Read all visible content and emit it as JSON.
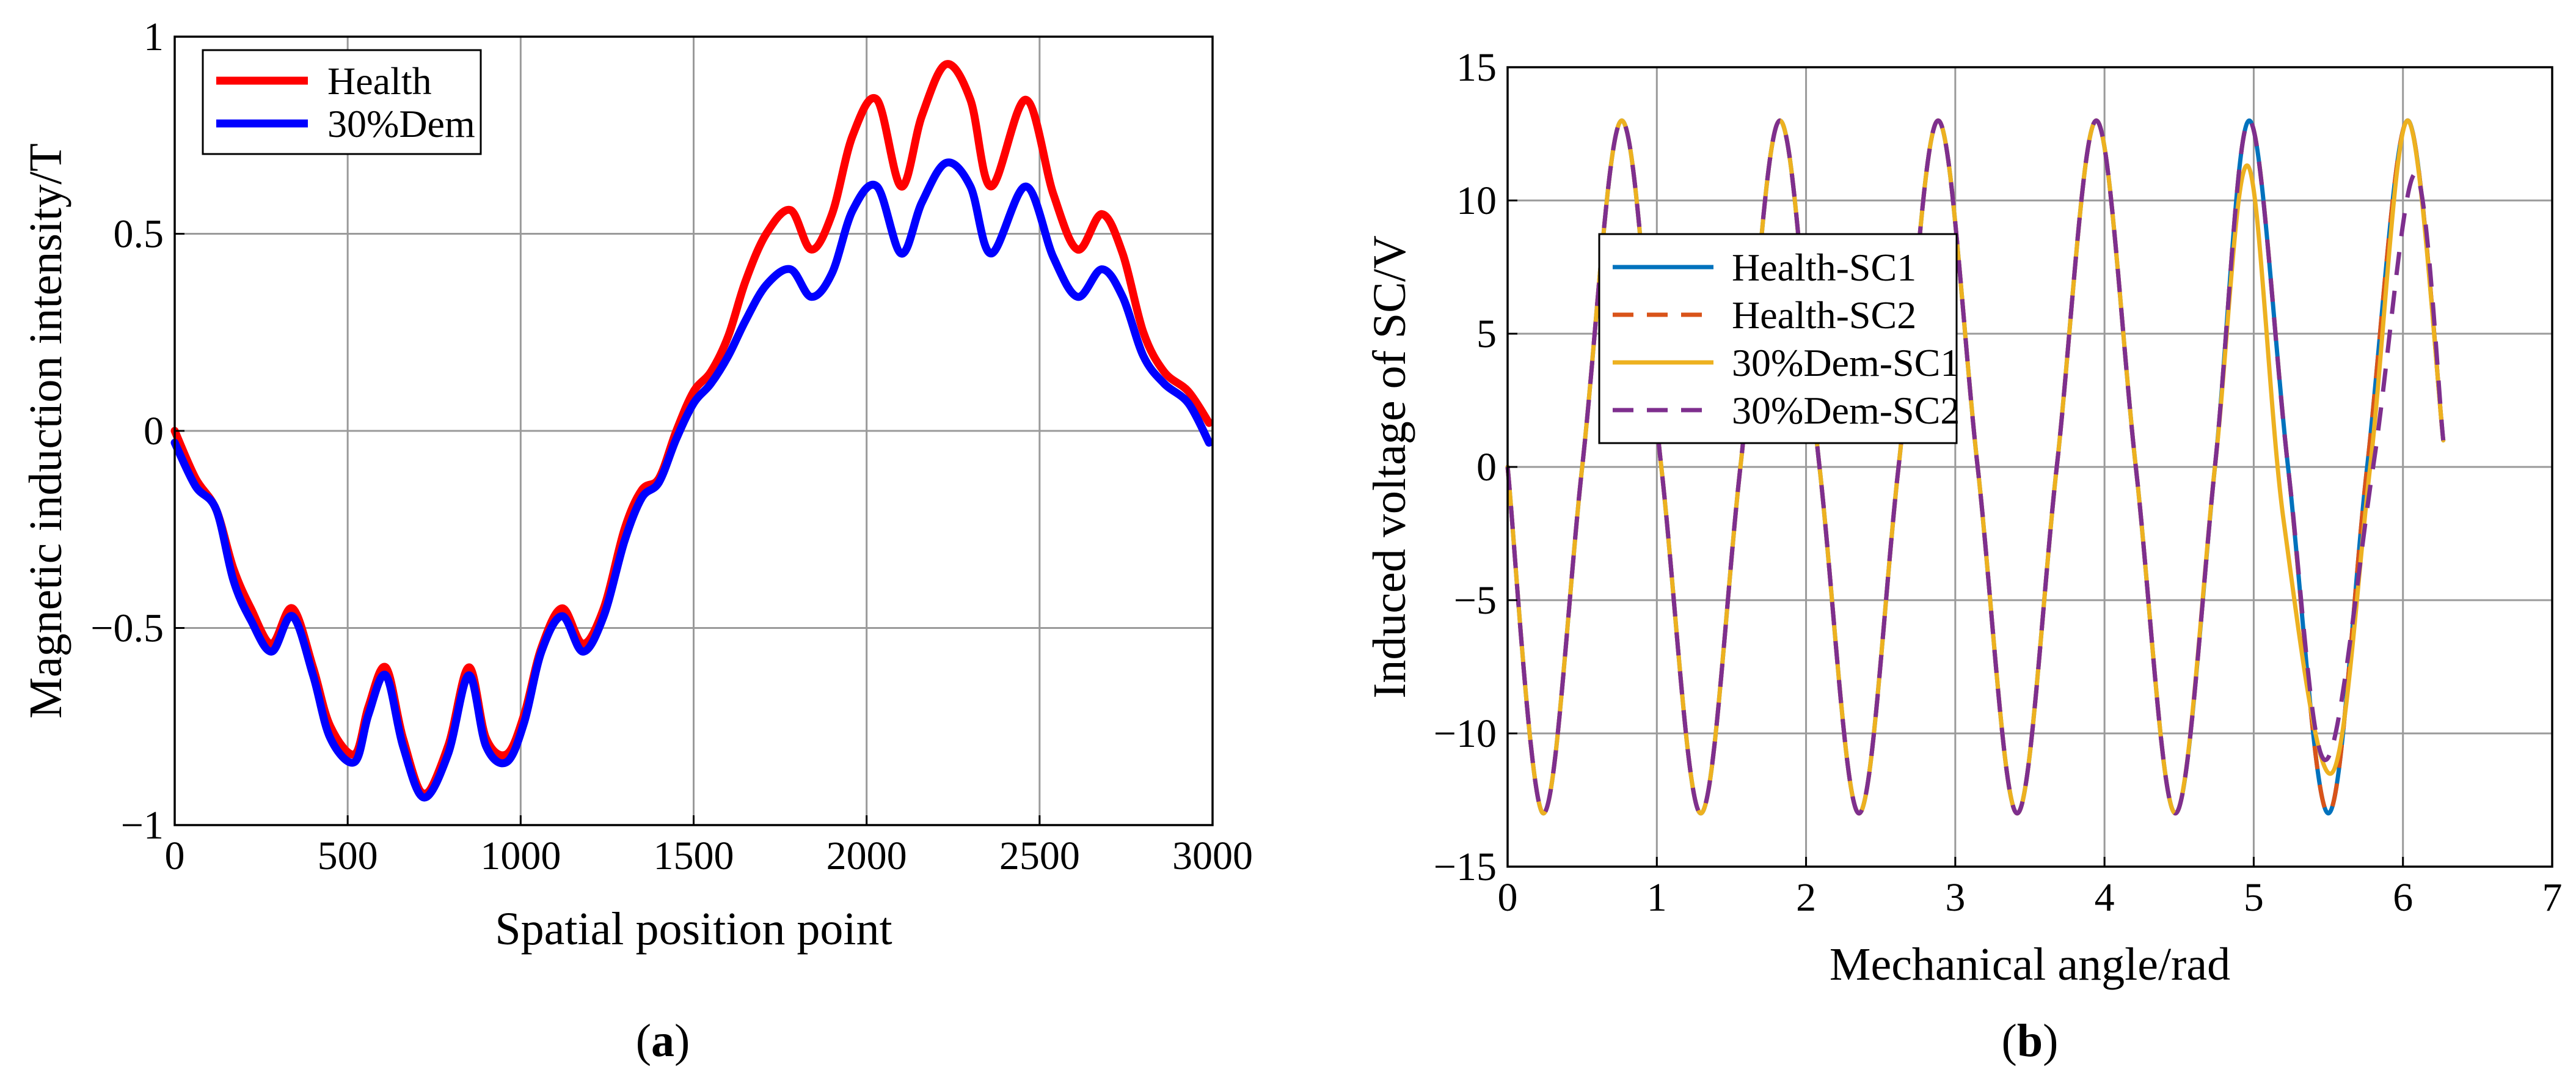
{
  "chart_data": [
    {
      "type": "line",
      "panel_label": "(a)",
      "panel_letter": "a",
      "xlabel": "Spatial position point",
      "ylabel": "Magnetic induction intensity/T",
      "xlim": [
        0,
        3000
      ],
      "ylim": [
        -1,
        1
      ],
      "xticks": [
        0,
        500,
        1000,
        1500,
        2000,
        2500,
        3000
      ],
      "yticks": [
        -1,
        -0.5,
        0,
        0.5,
        1
      ],
      "grid": true,
      "legend_position": "top-left",
      "series": [
        {
          "name": "Health",
          "color": "#ff0000",
          "dash": "solid",
          "x": [
            0,
            60,
            120,
            170,
            220,
            280,
            340,
            400,
            450,
            520,
            560,
            610,
            660,
            720,
            790,
            850,
            900,
            960,
            1010,
            1060,
            1120,
            1180,
            1240,
            1300,
            1350,
            1400,
            1450,
            1500,
            1550,
            1600,
            1650,
            1710,
            1780,
            1840,
            1900,
            1960,
            2030,
            2100,
            2160,
            2230,
            2300,
            2360,
            2460,
            2540,
            2610,
            2680,
            2740,
            2800,
            2860,
            2930,
            2990
          ],
          "y": [
            0,
            -0.12,
            -0.2,
            -0.35,
            -0.45,
            -0.54,
            -0.45,
            -0.6,
            -0.75,
            -0.82,
            -0.7,
            -0.6,
            -0.78,
            -0.92,
            -0.8,
            -0.6,
            -0.78,
            -0.82,
            -0.72,
            -0.55,
            -0.45,
            -0.54,
            -0.45,
            -0.25,
            -0.15,
            -0.12,
            0,
            0.1,
            0.15,
            0.24,
            0.38,
            0.5,
            0.56,
            0.46,
            0.55,
            0.75,
            0.84,
            0.62,
            0.8,
            0.93,
            0.84,
            0.62,
            0.84,
            0.6,
            0.46,
            0.55,
            0.45,
            0.25,
            0.15,
            0.1,
            0.02
          ]
        },
        {
          "name": "30%Dem",
          "color": "#0000ff",
          "dash": "solid",
          "x": [
            0,
            60,
            120,
            170,
            220,
            280,
            340,
            400,
            450,
            520,
            560,
            610,
            660,
            720,
            790,
            850,
            900,
            960,
            1010,
            1060,
            1120,
            1180,
            1240,
            1300,
            1350,
            1400,
            1450,
            1500,
            1550,
            1600,
            1650,
            1710,
            1780,
            1840,
            1900,
            1960,
            2030,
            2100,
            2160,
            2230,
            2300,
            2360,
            2460,
            2540,
            2610,
            2680,
            2740,
            2800,
            2860,
            2930,
            2990
          ],
          "y": [
            -0.03,
            -0.14,
            -0.2,
            -0.38,
            -0.48,
            -0.56,
            -0.47,
            -0.62,
            -0.78,
            -0.84,
            -0.72,
            -0.62,
            -0.8,
            -0.93,
            -0.82,
            -0.62,
            -0.8,
            -0.84,
            -0.74,
            -0.56,
            -0.47,
            -0.56,
            -0.47,
            -0.28,
            -0.17,
            -0.13,
            -0.02,
            0.07,
            0.12,
            0.19,
            0.28,
            0.37,
            0.41,
            0.34,
            0.4,
            0.56,
            0.62,
            0.45,
            0.58,
            0.68,
            0.62,
            0.45,
            0.62,
            0.44,
            0.34,
            0.41,
            0.34,
            0.19,
            0.12,
            0.07,
            -0.03
          ]
        }
      ]
    },
    {
      "type": "line",
      "panel_label": "(b)",
      "panel_letter": "b",
      "xlabel": "Mechanical angle/rad",
      "ylabel": "Induced voltage of SC/V",
      "xlim": [
        0,
        7
      ],
      "ylim": [
        -15,
        15
      ],
      "xticks": [
        0,
        1,
        2,
        3,
        4,
        5,
        6,
        7
      ],
      "yticks": [
        -15,
        -10,
        -5,
        0,
        5,
        10,
        15
      ],
      "grid": true,
      "legend_position": "center-left",
      "series": [
        {
          "name": "Health-SC1",
          "color": "#0072bd",
          "dash": "solid",
          "x": [
            0,
            0.24,
            0.5,
            0.765,
            1.03,
            1.295,
            1.56,
            1.825,
            2.09,
            2.355,
            2.62,
            2.885,
            3.15,
            3.415,
            3.68,
            3.945,
            4.21,
            4.475,
            4.74,
            4.97,
            5.23,
            5.5,
            5.76,
            6.03,
            6.27
          ],
          "y": [
            0,
            -13,
            0,
            13,
            0,
            -13,
            0,
            13,
            0,
            -13,
            0,
            13,
            0,
            -13,
            0,
            13,
            0,
            -13,
            0,
            13,
            0,
            -13,
            0,
            13,
            1
          ]
        },
        {
          "name": "Health-SC2",
          "color": "#d95319",
          "dash": "dashed",
          "x": [
            0,
            0.24,
            0.5,
            0.765,
            1.03,
            1.295,
            1.56,
            1.825,
            2.09,
            2.355,
            2.62,
            2.885,
            3.15,
            3.415,
            3.68,
            3.945,
            4.21,
            4.475,
            4.74,
            4.97,
            5.23,
            5.5,
            5.76,
            6.03,
            6.27
          ],
          "y": [
            0,
            -13,
            0,
            13,
            0,
            -13,
            0,
            13,
            0,
            -13,
            0,
            13,
            0,
            -13,
            0,
            13,
            0,
            -13,
            0,
            13,
            0,
            -13,
            0,
            13,
            1
          ]
        },
        {
          "name": "30%Dem-SC1",
          "color": "#edb120",
          "dash": "solid",
          "x": [
            0,
            0.24,
            0.5,
            0.765,
            1.03,
            1.295,
            1.56,
            1.825,
            2.09,
            2.355,
            2.62,
            2.885,
            3.15,
            3.415,
            3.68,
            3.945,
            4.21,
            4.475,
            4.74,
            4.96,
            5.2,
            5.52,
            5.78,
            6.03,
            6.27
          ],
          "y": [
            0,
            -13,
            0,
            13,
            0,
            -13,
            0,
            13,
            0,
            -13,
            0,
            13,
            0,
            -13,
            0,
            13,
            0,
            -13,
            0,
            11.3,
            -2,
            -11.5,
            0,
            13,
            1
          ]
        },
        {
          "name": "30%Dem-SC2",
          "color": "#7e2f8e",
          "dash": "dashed",
          "x": [
            0,
            0.24,
            0.5,
            0.765,
            1.03,
            1.295,
            1.56,
            1.825,
            2.09,
            2.355,
            2.62,
            2.885,
            3.15,
            3.415,
            3.68,
            3.945,
            4.21,
            4.475,
            4.74,
            4.97,
            5.23,
            5.48,
            5.8,
            6.08,
            6.27
          ],
          "y": [
            0,
            -13,
            0,
            13,
            0,
            -13,
            0,
            13,
            0,
            -13,
            0,
            13,
            0,
            -13,
            0,
            13,
            0,
            -13,
            0,
            13,
            0,
            -11,
            0,
            11,
            1
          ]
        }
      ]
    }
  ]
}
